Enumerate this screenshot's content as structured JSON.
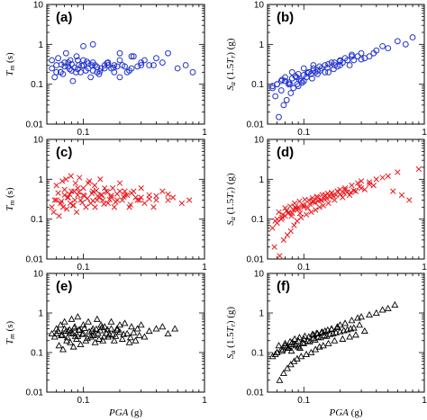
{
  "figure": {
    "xlabel": "PGA (g)",
    "x_ticks": [
      "0.1",
      "1"
    ],
    "y_ticks": [
      "0.01",
      "0.1",
      "1",
      "10"
    ]
  },
  "chart_data": [
    {
      "type": "scatter",
      "panel": "(a)",
      "ylabel": "Tm (s)",
      "marker": "circle",
      "color": "#2233cc",
      "xscale": "log",
      "yscale": "log",
      "xlim": [
        0.05,
        1
      ],
      "ylim": [
        0.01,
        10
      ],
      "grid": false,
      "x": [
        0.055,
        0.06,
        0.065,
        0.07,
        0.075,
        0.08,
        0.09,
        0.1,
        0.11,
        0.12,
        0.13,
        0.15,
        0.17,
        0.2,
        0.22,
        0.25,
        0.3,
        0.35,
        0.4,
        0.5,
        0.6,
        0.7,
        0.8,
        0.058,
        0.068,
        0.078,
        0.088,
        0.095,
        0.105,
        0.115,
        0.125,
        0.14,
        0.16,
        0.18,
        0.21,
        0.24,
        0.28,
        0.32,
        0.45,
        0.062,
        0.072,
        0.082,
        0.092,
        0.1,
        0.12,
        0.135,
        0.15,
        0.18,
        0.23,
        0.06,
        0.07,
        0.08,
        0.09,
        0.11,
        0.13,
        0.2,
        0.26,
        0.38,
        0.065,
        0.075,
        0.085,
        0.1,
        0.12,
        0.16,
        0.19,
        0.055,
        0.066,
        0.077,
        0.087,
        0.097,
        0.107,
        0.117,
        0.137,
        0.157,
        0.177,
        0.2,
        0.25,
        0.3
      ],
      "y": [
        0.25,
        0.3,
        0.2,
        0.35,
        0.28,
        0.22,
        0.4,
        0.3,
        0.25,
        0.35,
        0.2,
        0.3,
        0.25,
        0.4,
        0.28,
        0.5,
        0.35,
        0.3,
        0.45,
        0.6,
        0.25,
        0.3,
        0.2,
        0.15,
        0.18,
        0.4,
        0.5,
        0.2,
        0.22,
        0.15,
        0.3,
        0.25,
        0.35,
        0.2,
        0.3,
        0.22,
        0.28,
        0.4,
        0.35,
        0.45,
        0.6,
        0.12,
        0.3,
        0.9,
        1.0,
        0.18,
        0.25,
        0.3,
        0.2,
        0.2,
        0.28,
        0.32,
        0.24,
        0.33,
        0.27,
        0.15,
        0.5,
        0.3,
        0.2,
        0.35,
        0.26,
        0.4,
        0.22,
        0.3,
        0.28,
        0.4,
        0.31,
        0.24,
        0.2,
        0.29,
        0.37,
        0.3,
        0.21,
        0.34,
        0.26,
        0.6,
        0.25,
        0.3
      ]
    },
    {
      "type": "scatter",
      "panel": "(b)",
      "ylabel": "Sa (1.5Tr) (g)",
      "marker": "circle",
      "color": "#2233cc",
      "xscale": "log",
      "yscale": "log",
      "xlim": [
        0.05,
        1
      ],
      "ylim": [
        0.01,
        10
      ],
      "grid": false,
      "x": [
        0.055,
        0.06,
        0.065,
        0.07,
        0.075,
        0.08,
        0.09,
        0.1,
        0.11,
        0.12,
        0.13,
        0.15,
        0.17,
        0.2,
        0.22,
        0.25,
        0.3,
        0.35,
        0.4,
        0.5,
        0.6,
        0.7,
        0.8,
        0.058,
        0.068,
        0.078,
        0.088,
        0.095,
        0.105,
        0.115,
        0.125,
        0.14,
        0.16,
        0.18,
        0.21,
        0.24,
        0.28,
        0.32,
        0.45,
        0.062,
        0.072,
        0.082,
        0.092,
        0.1,
        0.12,
        0.135,
        0.15,
        0.18,
        0.23,
        0.06,
        0.07,
        0.08,
        0.09,
        0.11,
        0.13,
        0.2,
        0.26,
        0.38,
        0.065,
        0.075,
        0.085,
        0.1,
        0.12,
        0.16,
        0.19,
        0.055,
        0.066,
        0.077,
        0.087,
        0.097,
        0.107,
        0.117,
        0.137,
        0.157,
        0.177,
        0.2,
        0.25,
        0.3
      ],
      "y": [
        0.08,
        0.1,
        0.12,
        0.15,
        0.1,
        0.2,
        0.18,
        0.25,
        0.2,
        0.3,
        0.22,
        0.3,
        0.35,
        0.4,
        0.45,
        0.5,
        0.6,
        0.5,
        0.7,
        0.8,
        1.2,
        1.0,
        1.5,
        0.05,
        0.03,
        0.06,
        0.1,
        0.12,
        0.15,
        0.18,
        0.2,
        0.25,
        0.2,
        0.3,
        0.35,
        0.3,
        0.5,
        0.45,
        0.9,
        0.015,
        0.04,
        0.08,
        0.13,
        0.17,
        0.22,
        0.28,
        0.2,
        0.35,
        0.4,
        0.1,
        0.12,
        0.14,
        0.09,
        0.2,
        0.18,
        0.3,
        0.4,
        0.6,
        0.07,
        0.11,
        0.16,
        0.12,
        0.25,
        0.32,
        0.28,
        0.09,
        0.13,
        0.1,
        0.15,
        0.11,
        0.19,
        0.14,
        0.22,
        0.26,
        0.24,
        0.38,
        0.55,
        0.42
      ]
    },
    {
      "type": "scatter",
      "panel": "(c)",
      "ylabel": "Tm (s)",
      "marker": "x",
      "color": "#e8161b",
      "xscale": "log",
      "yscale": "log",
      "xlim": [
        0.05,
        1
      ],
      "ylim": [
        0.01,
        10
      ],
      "grid": false,
      "x": [
        0.055,
        0.06,
        0.065,
        0.07,
        0.075,
        0.08,
        0.085,
        0.09,
        0.1,
        0.11,
        0.12,
        0.13,
        0.14,
        0.15,
        0.17,
        0.19,
        0.2,
        0.22,
        0.25,
        0.28,
        0.3,
        0.35,
        0.4,
        0.45,
        0.5,
        0.55,
        0.65,
        0.75,
        0.057,
        0.063,
        0.068,
        0.073,
        0.078,
        0.083,
        0.088,
        0.095,
        0.105,
        0.115,
        0.125,
        0.135,
        0.145,
        0.16,
        0.18,
        0.21,
        0.24,
        0.27,
        0.32,
        0.38,
        0.06,
        0.067,
        0.072,
        0.079,
        0.086,
        0.093,
        0.1,
        0.112,
        0.124,
        0.138,
        0.155,
        0.175,
        0.2,
        0.23,
        0.26,
        0.3,
        0.058,
        0.066,
        0.074,
        0.082,
        0.09,
        0.098,
        0.108,
        0.12,
        0.132,
        0.148,
        0.165,
        0.185,
        0.215,
        0.245,
        0.29,
        0.35,
        0.062,
        0.07,
        0.077,
        0.084,
        0.092,
        0.102,
        0.118,
        0.128,
        0.142,
        0.158,
        0.17,
        0.19,
        0.22,
        0.4,
        0.5
      ],
      "y": [
        0.2,
        0.3,
        0.25,
        0.4,
        0.35,
        0.5,
        0.3,
        0.6,
        0.4,
        0.8,
        0.5,
        0.3,
        0.4,
        0.6,
        0.35,
        0.3,
        0.5,
        0.4,
        0.45,
        0.3,
        0.35,
        0.4,
        0.3,
        0.5,
        0.3,
        0.35,
        0.25,
        0.3,
        0.15,
        0.12,
        0.2,
        0.18,
        0.25,
        0.22,
        0.15,
        0.3,
        0.2,
        0.25,
        0.2,
        0.35,
        0.3,
        0.25,
        0.2,
        0.3,
        0.2,
        0.35,
        0.25,
        0.2,
        0.7,
        0.9,
        1.0,
        1.2,
        0.8,
        1.1,
        0.6,
        0.9,
        0.7,
        1.0,
        0.5,
        0.6,
        0.8,
        0.4,
        0.5,
        0.6,
        0.3,
        0.28,
        0.35,
        0.22,
        0.4,
        0.26,
        0.33,
        0.29,
        0.38,
        0.24,
        0.31,
        0.27,
        0.36,
        0.23,
        0.3,
        0.32,
        0.45,
        0.55,
        0.42,
        0.5,
        0.48,
        0.38,
        0.44,
        0.52,
        0.41,
        0.47,
        0.39,
        0.43,
        0.5,
        0.38,
        0.42
      ]
    },
    {
      "type": "scatter",
      "panel": "(d)",
      "ylabel": "Sa (1.5Tr) (g)",
      "marker": "x",
      "color": "#e8161b",
      "xscale": "log",
      "yscale": "log",
      "xlim": [
        0.05,
        1
      ],
      "ylim": [
        0.01,
        10
      ],
      "grid": false,
      "x": [
        0.055,
        0.06,
        0.065,
        0.07,
        0.075,
        0.08,
        0.085,
        0.09,
        0.1,
        0.11,
        0.12,
        0.13,
        0.14,
        0.15,
        0.17,
        0.19,
        0.2,
        0.22,
        0.25,
        0.28,
        0.3,
        0.35,
        0.4,
        0.45,
        0.5,
        0.55,
        0.65,
        0.75,
        0.057,
        0.063,
        0.068,
        0.073,
        0.078,
        0.083,
        0.088,
        0.095,
        0.105,
        0.115,
        0.125,
        0.135,
        0.145,
        0.16,
        0.18,
        0.21,
        0.24,
        0.27,
        0.32,
        0.38,
        0.06,
        0.067,
        0.072,
        0.079,
        0.086,
        0.093,
        0.1,
        0.112,
        0.124,
        0.138,
        0.155,
        0.175,
        0.2,
        0.23,
        0.26,
        0.3,
        0.058,
        0.066,
        0.074,
        0.082,
        0.09,
        0.098,
        0.108,
        0.12,
        0.132,
        0.148,
        0.165,
        0.185,
        0.215,
        0.245,
        0.29,
        0.35,
        0.062,
        0.07,
        0.077,
        0.084,
        0.092,
        0.102,
        0.118,
        0.128,
        0.142,
        0.158,
        0.17,
        0.19,
        0.22,
        0.6,
        0.9
      ],
      "y": [
        0.06,
        0.08,
        0.1,
        0.12,
        0.15,
        0.14,
        0.2,
        0.18,
        0.22,
        0.3,
        0.28,
        0.35,
        0.3,
        0.4,
        0.45,
        0.5,
        0.55,
        0.6,
        0.7,
        0.8,
        0.9,
        0.85,
        1.0,
        1.1,
        1.2,
        0.5,
        0.4,
        0.3,
        0.02,
        0.012,
        0.03,
        0.04,
        0.05,
        0.07,
        0.09,
        0.11,
        0.13,
        0.15,
        0.17,
        0.2,
        0.22,
        0.25,
        0.3,
        0.35,
        0.4,
        0.5,
        0.55,
        0.7,
        0.1,
        0.13,
        0.16,
        0.12,
        0.18,
        0.14,
        0.2,
        0.24,
        0.26,
        0.3,
        0.33,
        0.38,
        0.42,
        0.48,
        0.52,
        0.6,
        0.09,
        0.11,
        0.14,
        0.17,
        0.2,
        0.23,
        0.19,
        0.27,
        0.29,
        0.32,
        0.36,
        0.4,
        0.45,
        0.47,
        0.65,
        0.75,
        0.15,
        0.19,
        0.21,
        0.25,
        0.28,
        0.31,
        0.34,
        0.37,
        0.41,
        0.44,
        0.46,
        0.5,
        0.54,
        1.5,
        1.8
      ]
    },
    {
      "type": "scatter",
      "panel": "(e)",
      "ylabel": "Tm (s)",
      "marker": "triangle",
      "color": "#000000",
      "xscale": "log",
      "yscale": "log",
      "xlim": [
        0.05,
        1
      ],
      "ylim": [
        0.01,
        10
      ],
      "grid": false,
      "x": [
        0.055,
        0.06,
        0.065,
        0.07,
        0.075,
        0.08,
        0.085,
        0.09,
        0.1,
        0.11,
        0.12,
        0.13,
        0.14,
        0.15,
        0.17,
        0.19,
        0.2,
        0.22,
        0.25,
        0.28,
        0.3,
        0.35,
        0.4,
        0.45,
        0.5,
        0.57,
        0.063,
        0.068,
        0.073,
        0.078,
        0.083,
        0.088,
        0.095,
        0.105,
        0.115,
        0.125,
        0.135,
        0.145,
        0.16,
        0.18,
        0.21,
        0.24,
        0.27,
        0.32,
        0.06,
        0.067,
        0.072,
        0.079,
        0.086,
        0.093,
        0.1,
        0.112,
        0.124,
        0.138,
        0.155,
        0.175,
        0.2,
        0.23,
        0.26,
        0.058,
        0.066,
        0.074,
        0.082,
        0.09,
        0.098,
        0.108,
        0.12,
        0.132,
        0.148,
        0.165,
        0.185,
        0.215,
        0.245,
        0.29,
        0.062,
        0.07,
        0.077,
        0.084,
        0.092,
        0.102,
        0.118,
        0.128,
        0.142,
        0.158,
        0.17,
        0.19
      ],
      "y": [
        0.3,
        0.4,
        0.5,
        0.6,
        0.35,
        0.7,
        0.45,
        0.8,
        0.5,
        0.6,
        0.4,
        0.7,
        0.5,
        0.45,
        0.6,
        0.4,
        0.5,
        0.55,
        0.45,
        0.4,
        0.5,
        0.35,
        0.4,
        0.45,
        0.3,
        0.4,
        0.15,
        0.12,
        0.2,
        0.18,
        0.14,
        0.22,
        0.16,
        0.2,
        0.25,
        0.18,
        0.22,
        0.2,
        0.25,
        0.2,
        0.22,
        0.18,
        0.2,
        0.25,
        0.3,
        0.28,
        0.35,
        0.32,
        0.26,
        0.38,
        0.3,
        0.34,
        0.28,
        0.36,
        0.31,
        0.29,
        0.33,
        0.3,
        0.32,
        0.25,
        0.27,
        0.24,
        0.3,
        0.26,
        0.29,
        0.23,
        0.27,
        0.31,
        0.25,
        0.28,
        0.26,
        0.29,
        0.24,
        0.27,
        0.35,
        0.4,
        0.38,
        0.42,
        0.37,
        0.41,
        0.36,
        0.39,
        0.43,
        0.38,
        0.4,
        0.37
      ]
    },
    {
      "type": "scatter",
      "panel": "(f)",
      "ylabel": "Sa (1.5Tr) (g)",
      "marker": "triangle",
      "color": "#000000",
      "xscale": "log",
      "yscale": "log",
      "xlim": [
        0.05,
        1
      ],
      "ylim": [
        0.01,
        10
      ],
      "grid": false,
      "x": [
        0.055,
        0.06,
        0.065,
        0.07,
        0.075,
        0.08,
        0.085,
        0.09,
        0.1,
        0.11,
        0.12,
        0.13,
        0.14,
        0.15,
        0.17,
        0.19,
        0.2,
        0.22,
        0.25,
        0.28,
        0.3,
        0.35,
        0.4,
        0.45,
        0.5,
        0.57,
        0.063,
        0.068,
        0.073,
        0.078,
        0.083,
        0.088,
        0.095,
        0.105,
        0.115,
        0.125,
        0.135,
        0.145,
        0.16,
        0.18,
        0.21,
        0.24,
        0.27,
        0.32,
        0.06,
        0.067,
        0.072,
        0.079,
        0.086,
        0.093,
        0.1,
        0.112,
        0.124,
        0.138,
        0.155,
        0.175,
        0.2,
        0.23,
        0.26,
        0.058,
        0.066,
        0.074,
        0.082,
        0.09,
        0.098,
        0.108,
        0.12,
        0.132,
        0.148,
        0.165,
        0.185,
        0.215,
        0.245,
        0.29,
        0.062,
        0.07,
        0.077,
        0.084,
        0.092,
        0.102,
        0.118,
        0.128,
        0.142,
        0.158,
        0.17,
        0.19
      ],
      "y": [
        0.08,
        0.1,
        0.12,
        0.15,
        0.13,
        0.18,
        0.16,
        0.2,
        0.22,
        0.25,
        0.28,
        0.3,
        0.32,
        0.35,
        0.4,
        0.45,
        0.5,
        0.55,
        0.65,
        0.75,
        0.8,
        0.9,
        1.0,
        1.2,
        1.3,
        1.6,
        0.02,
        0.03,
        0.04,
        0.05,
        0.06,
        0.07,
        0.08,
        0.09,
        0.1,
        0.12,
        0.14,
        0.15,
        0.17,
        0.2,
        0.22,
        0.25,
        0.28,
        0.35,
        0.1,
        0.12,
        0.14,
        0.11,
        0.15,
        0.13,
        0.17,
        0.19,
        0.21,
        0.24,
        0.26,
        0.3,
        0.34,
        0.38,
        0.42,
        0.09,
        0.11,
        0.13,
        0.16,
        0.14,
        0.18,
        0.2,
        0.23,
        0.25,
        0.27,
        0.29,
        0.32,
        0.36,
        0.4,
        0.5,
        0.15,
        0.17,
        0.19,
        0.22,
        0.24,
        0.26,
        0.29,
        0.31,
        0.33,
        0.37,
        0.39,
        0.43
      ]
    }
  ]
}
